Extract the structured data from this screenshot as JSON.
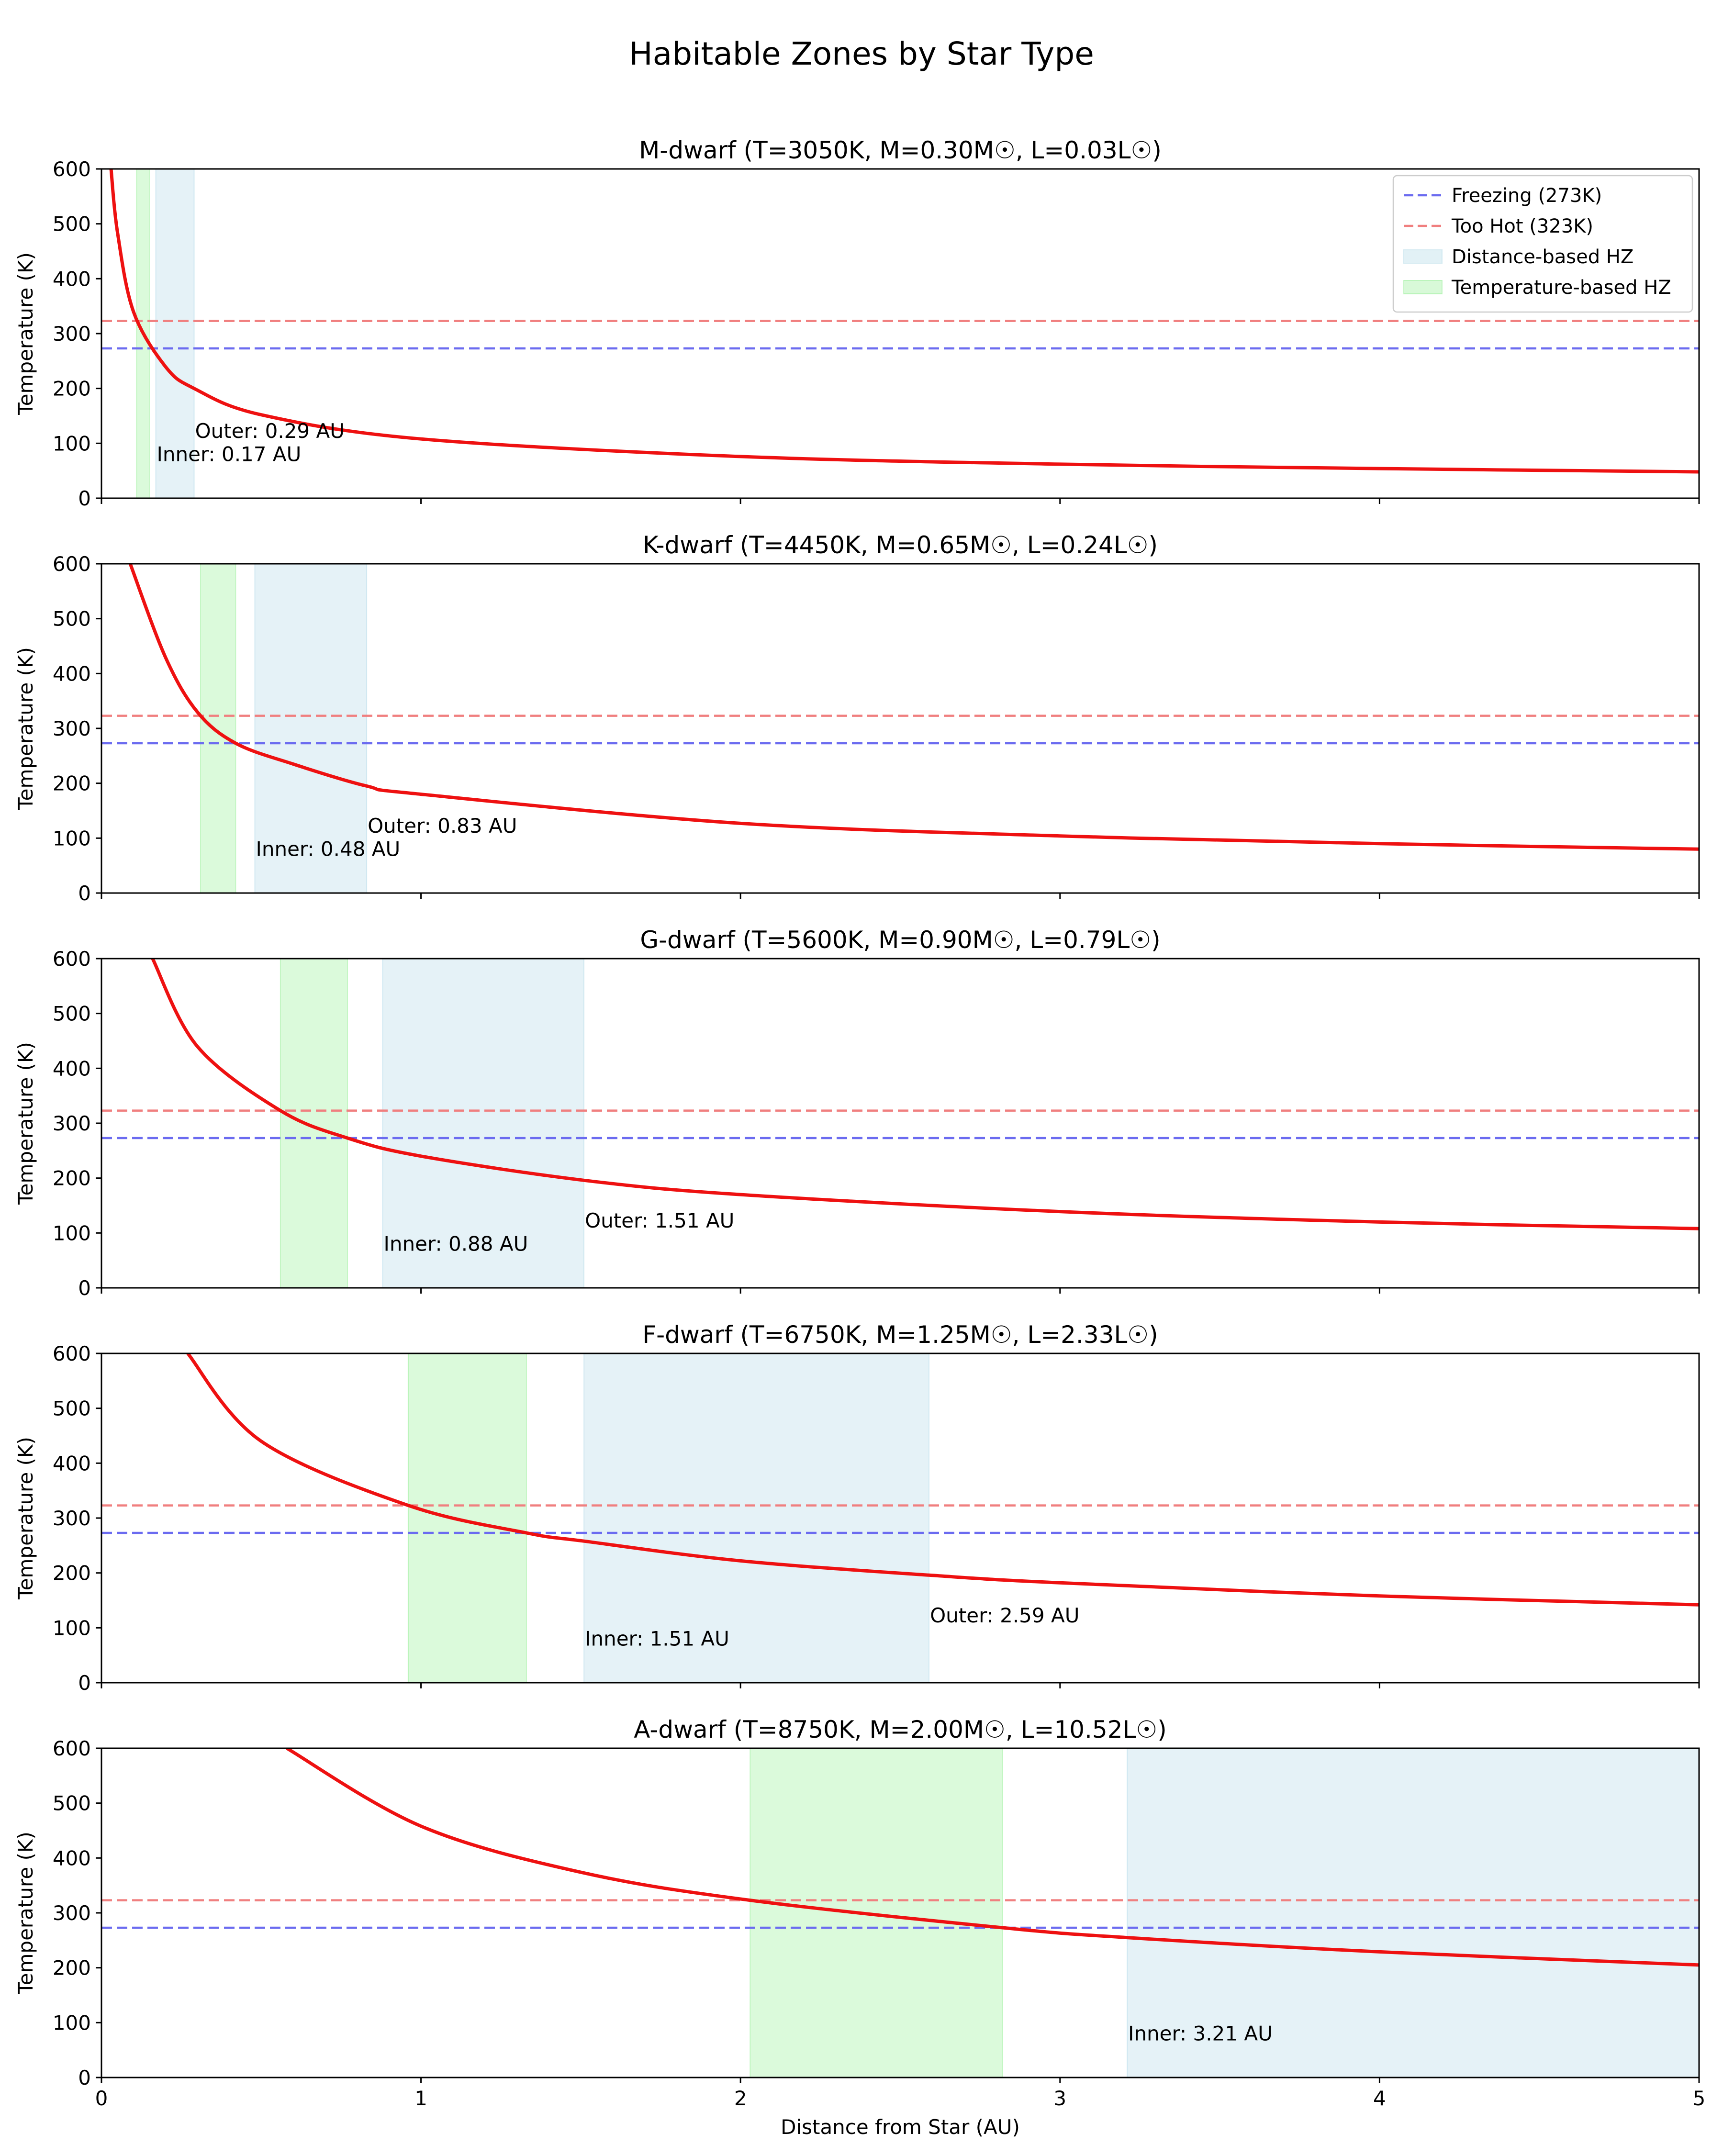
{
  "figure": {
    "title": "Habitable Zones by Star Type"
  },
  "chart_data": {
    "type": "line",
    "title": "Habitable Zones by Star Type",
    "xlabel": "Distance from Star (AU)",
    "xlim": [
      0,
      5
    ],
    "ylim": [
      0,
      600
    ],
    "x_ticks": [
      "0",
      "1",
      "2",
      "3",
      "4",
      "5"
    ],
    "y_ticks": [
      "0",
      "100",
      "200",
      "300",
      "400",
      "500",
      "600"
    ],
    "grid": false,
    "legend_position": "top-right",
    "reference_lines": [
      {
        "name": "Freezing (273K)",
        "y": 273,
        "color": "#6b6bf0",
        "style": "dashed"
      },
      {
        "name": "Too Hot (323K)",
        "y": 323,
        "color": "#f07f7f",
        "style": "dashed"
      }
    ],
    "zone_legend": [
      {
        "name": "Distance-based HZ",
        "color": "#add8e6"
      },
      {
        "name": "Temperature-based HZ",
        "color": "#90ee90"
      }
    ],
    "curve_color": "#ee1111",
    "panels": [
      {
        "title": "M-dwarf (T=3050K, M=0.30M☉, L=0.03L☉)",
        "ylabel": "Temperature (K)",
        "luminosity": 0.03,
        "distance_hz": {
          "inner": 0.17,
          "outer": 0.29
        },
        "temperature_hz": {
          "inner": 0.11,
          "outer": 0.15
        },
        "inner_label": "Inner: 0.17 AU",
        "outer_label": "Outer: 0.29 AU",
        "curve_points": [
          [
            0.03,
            600
          ],
          [
            0.05,
            485
          ],
          [
            0.1,
            340
          ],
          [
            0.2,
            240
          ],
          [
            0.29,
            200
          ],
          [
            0.5,
            152
          ],
          [
            1,
            108
          ],
          [
            2,
            76
          ],
          [
            3,
            62
          ],
          [
            4,
            54
          ],
          [
            5,
            48
          ]
        ]
      },
      {
        "title": "K-dwarf (T=4450K, M=0.65M☉, L=0.24L☉)",
        "ylabel": "Temperature (K)",
        "luminosity": 0.24,
        "distance_hz": {
          "inner": 0.48,
          "outer": 0.83
        },
        "temperature_hz": {
          "inner": 0.31,
          "outer": 0.42
        },
        "inner_label": "Inner: 0.48 AU",
        "outer_label": "Outer: 0.83 AU",
        "curve_points": [
          [
            0.09,
            600
          ],
          [
            0.2,
            430
          ],
          [
            0.3,
            330
          ],
          [
            0.42,
            273
          ],
          [
            0.6,
            235
          ],
          [
            0.83,
            195
          ],
          [
            1,
            180
          ],
          [
            2,
            127
          ],
          [
            3,
            104
          ],
          [
            4,
            90
          ],
          [
            5,
            80
          ]
        ]
      },
      {
        "title": "G-dwarf (T=5600K, M=0.90M☉, L=0.79L☉)",
        "ylabel": "Temperature (K)",
        "luminosity": 0.79,
        "distance_hz": {
          "inner": 0.88,
          "outer": 1.51
        },
        "temperature_hz": {
          "inner": 0.56,
          "outer": 0.77
        },
        "inner_label": "Inner: 0.88 AU",
        "outer_label": "Outer: 1.51 AU",
        "curve_points": [
          [
            0.16,
            600
          ],
          [
            0.3,
            440
          ],
          [
            0.56,
            323
          ],
          [
            0.77,
            273
          ],
          [
            1,
            240
          ],
          [
            1.51,
            196
          ],
          [
            2,
            170
          ],
          [
            3,
            139
          ],
          [
            4,
            120
          ],
          [
            5,
            108
          ]
        ]
      },
      {
        "title": "F-dwarf (T=6750K, M=1.25M☉, L=2.33L☉)",
        "ylabel": "Temperature (K)",
        "luminosity": 2.33,
        "distance_hz": {
          "inner": 1.51,
          "outer": 2.59
        },
        "temperature_hz": {
          "inner": 0.96,
          "outer": 1.33
        },
        "inner_label": "Inner: 1.51 AU",
        "outer_label": "Outer: 2.59 AU",
        "curve_points": [
          [
            0.27,
            600
          ],
          [
            0.5,
            440
          ],
          [
            0.96,
            323
          ],
          [
            1.33,
            273
          ],
          [
            1.51,
            258
          ],
          [
            2,
            222
          ],
          [
            2.59,
            196
          ],
          [
            3,
            182
          ],
          [
            4,
            158
          ],
          [
            5,
            142
          ]
        ]
      },
      {
        "title": "A-dwarf (T=8750K, M=2.00M☉, L=10.52L☉)",
        "ylabel": "Temperature (K)",
        "xlabel": "Distance from Star (AU)",
        "luminosity": 10.52,
        "distance_hz": {
          "inner": 3.21,
          "outer": 5.0
        },
        "temperature_hz": {
          "inner": 2.03,
          "outer": 2.82
        },
        "inner_label": "Inner: 3.21 AU",
        "outer_label": "",
        "curve_points": [
          [
            0.58,
            600
          ],
          [
            1,
            458
          ],
          [
            1.5,
            374
          ],
          [
            2.03,
            323
          ],
          [
            2.82,
            273
          ],
          [
            3.21,
            255
          ],
          [
            4,
            229
          ],
          [
            5,
            205
          ]
        ]
      }
    ]
  }
}
